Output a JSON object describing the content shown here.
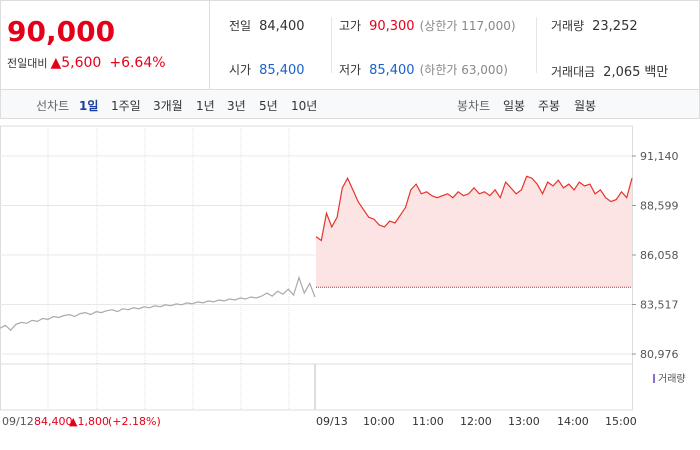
{
  "header": {
    "price": "90,000",
    "change_label": "전일대비",
    "change": "▲5,600",
    "change_rate": "+6.64%"
  },
  "stats": [
    {
      "label": "전일",
      "value": "84,400"
    },
    {
      "label": "고가",
      "value": "90,300",
      "note": "(상한가 117,000)"
    },
    {
      "label": "거래량",
      "value": "23,252"
    },
    {
      "label": "시가",
      "value": "85,400"
    },
    {
      "label": "저가",
      "value": "85,400",
      "note": "(하한가 63,000)"
    },
    {
      "label": "거래대금",
      "value": "2,065",
      "unit": "백만"
    }
  ],
  "tabs": {
    "line_label": "선차트",
    "line": [
      "1일",
      "1주일",
      "3개월",
      "1년",
      "3년",
      "5년",
      "10년"
    ],
    "candle_label": "봉차트",
    "candle": [
      "일봉",
      "주봉",
      "월봉"
    ]
  },
  "chart_data": {
    "type": "line",
    "ylim": [
      80976,
      91140
    ],
    "yticks": [
      {
        "value": 80976,
        "label": "80,976"
      },
      {
        "value": 83517,
        "label": "83,517"
      },
      {
        "value": 86058,
        "label": "86,058"
      },
      {
        "value": 88599,
        "label": "88,599"
      },
      {
        "value": 91140,
        "label": "91,140"
      }
    ],
    "baseline": 84400,
    "x_labels": [
      "09/13",
      "10:00",
      "11:00",
      "12:00",
      "13:00",
      "14:00",
      "15:00"
    ],
    "series": [
      {
        "color": "#aaaaaa",
        "values": [
          82300,
          82450,
          82200,
          82500,
          82600,
          82550,
          82700,
          82650,
          82800,
          82750,
          82900,
          82850,
          82950,
          83000,
          82900,
          83050,
          83100,
          83000,
          83150,
          83100,
          83200,
          83250,
          83150,
          83300,
          83250,
          83350,
          83300,
          83400,
          83350,
          83450,
          83400,
          83500,
          83450,
          83550,
          83500,
          83600,
          83550,
          83650,
          83600,
          83700,
          83650,
          83750,
          83700,
          83800,
          83750,
          83850,
          83800,
          83900,
          83850,
          83950,
          84100,
          83950,
          84200,
          84050,
          84300,
          84000,
          84900,
          84100,
          84600,
          83900
        ]
      },
      {
        "color": "#e5332a",
        "values": [
          87000,
          86800,
          88200,
          87500,
          88000,
          89500,
          90000,
          89400,
          88800,
          88400,
          88000,
          87900,
          87600,
          87500,
          87800,
          87700,
          88100,
          88500,
          89400,
          89700,
          89200,
          89300,
          89100,
          89000,
          89100,
          89200,
          89000,
          89300,
          89100,
          89200,
          89500,
          89200,
          89300,
          89100,
          89400,
          89000,
          89800,
          89500,
          89200,
          89400,
          90100,
          90000,
          89700,
          89200,
          89800,
          89600,
          89900,
          89500,
          89700,
          89400,
          89800,
          89600,
          89700,
          89200,
          89400,
          89000,
          88800,
          88900,
          89300,
          89000,
          90000
        ]
      }
    ],
    "volume_label": "거래량",
    "footer": {
      "date": "09/12",
      "close": "84,400",
      "change": "▲1,800",
      "rate": "(+2.18%)"
    }
  }
}
